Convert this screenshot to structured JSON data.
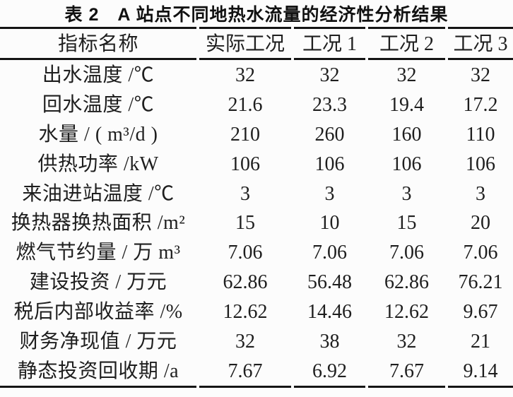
{
  "page": {
    "background": "#fcfcfc",
    "text_color": "#1e1e1e",
    "rule_color": "#141414"
  },
  "title": "表 2　A 站点不同地热水流量的经济性分析结果",
  "table": {
    "headers": [
      "指标名称",
      "实际工况",
      "工况 1",
      "工况 2",
      "工况 3"
    ],
    "rows": [
      [
        "出水温度 /℃",
        "32",
        "32",
        "32",
        "32"
      ],
      [
        "回水温度 /℃",
        "21.6",
        "23.3",
        "19.4",
        "17.2"
      ],
      [
        "水量 / ( m³/d )",
        "210",
        "260",
        "160",
        "110"
      ],
      [
        "供热功率 /kW",
        "106",
        "106",
        "106",
        "106"
      ],
      [
        "来油进站温度 /℃",
        "3",
        "3",
        "3",
        "3"
      ],
      [
        "换热器换热面积 /m²",
        "15",
        "10",
        "15",
        "20"
      ],
      [
        "燃气节约量 / 万 m³",
        "7.06",
        "7.06",
        "7.06",
        "7.06"
      ],
      [
        "建设投资 / 万元",
        "62.86",
        "56.48",
        "62.86",
        "76.21"
      ],
      [
        "税后内部收益率 /%",
        "12.62",
        "14.46",
        "12.62",
        "9.67"
      ],
      [
        "财务净现值 / 万元",
        "32",
        "38",
        "32",
        "21"
      ],
      [
        "静态投资回收期 /a",
        "7.67",
        "6.92",
        "7.67",
        "9.14"
      ]
    ]
  }
}
